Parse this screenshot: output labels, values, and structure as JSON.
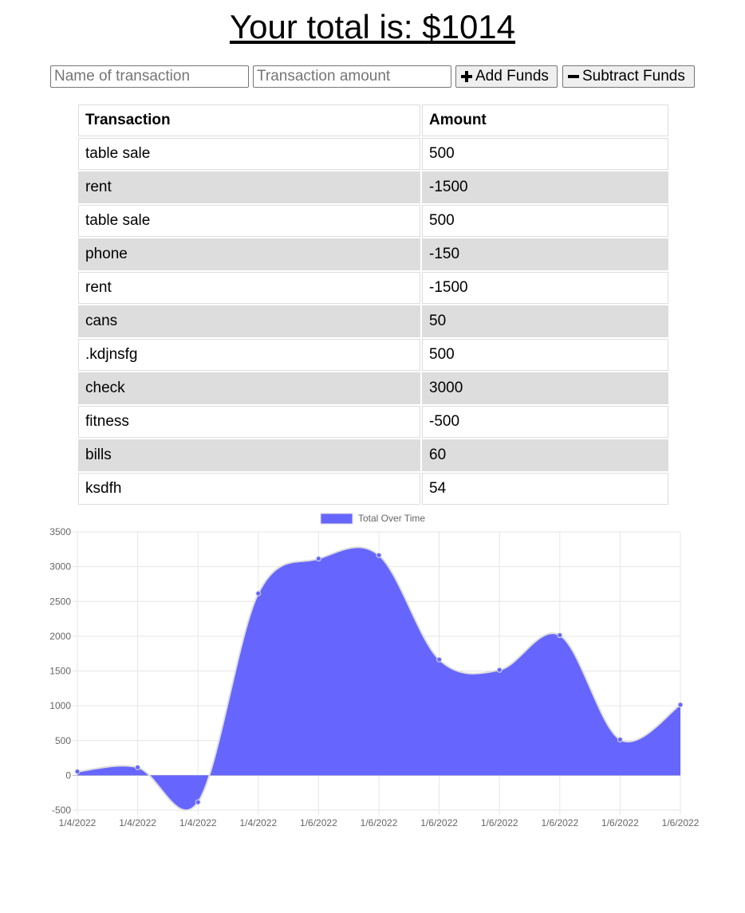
{
  "total": {
    "label": "Your total is: $",
    "amount": "1014"
  },
  "form": {
    "name_placeholder": "Name of transaction",
    "amount_placeholder": "Transaction amount",
    "add_label": "Add Funds",
    "subtract_label": "Subtract Funds"
  },
  "table": {
    "headers": [
      "Transaction",
      "Amount"
    ],
    "rows": [
      [
        "table sale",
        "500"
      ],
      [
        "rent",
        "-1500"
      ],
      [
        "table sale",
        "500"
      ],
      [
        "phone",
        "-150"
      ],
      [
        "rent",
        "-1500"
      ],
      [
        "cans",
        "50"
      ],
      [
        ".kdjnsfg",
        "500"
      ],
      [
        "check",
        "3000"
      ],
      [
        "fitness",
        "-500"
      ],
      [
        "bills",
        "60"
      ],
      [
        "ksdfh",
        "54"
      ]
    ]
  },
  "chart_data": {
    "type": "area",
    "legend": "Total Over Time",
    "legend_position": "top",
    "x": [
      "1/4/2022",
      "1/4/2022",
      "1/4/2022",
      "1/4/2022",
      "1/6/2022",
      "1/6/2022",
      "1/6/2022",
      "1/6/2022",
      "1/6/2022",
      "1/6/2022",
      "1/6/2022"
    ],
    "values": [
      54,
      114,
      -386,
      2614,
      3114,
      3164,
      1664,
      1514,
      2014,
      514,
      1014
    ],
    "ylim": [
      -500,
      3500
    ],
    "yticks": [
      -500,
      0,
      500,
      1000,
      1500,
      2000,
      2500,
      3000,
      3500
    ],
    "grid": true,
    "fill_color": "#6666ff",
    "line_color": "#dddddd"
  },
  "colors": {
    "row_alt": "#dddddd",
    "border": "#dddddd"
  },
  "icons": {
    "add": "plus-icon",
    "subtract": "minus-icon"
  }
}
